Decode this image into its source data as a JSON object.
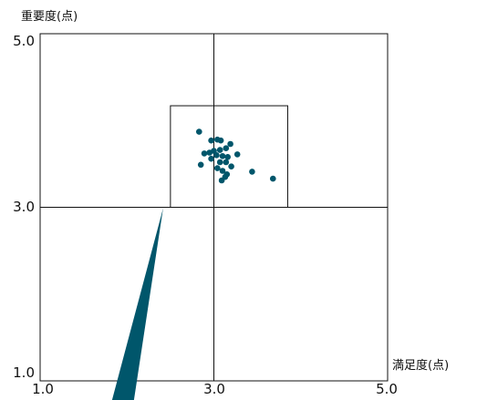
{
  "chart_data": {
    "type": "scatter",
    "title": "",
    "ylabel": "重要度(点)",
    "xlabel": "満足度(点)",
    "xlim": [
      1.0,
      5.0
    ],
    "ylim": [
      1.0,
      5.0
    ],
    "x_ticks": [
      "1.0",
      "3.0",
      "5.0"
    ],
    "y_ticks": [
      "1.0",
      "3.0",
      "5.0"
    ],
    "reference_lines": {
      "x": 3.0,
      "y": 3.0
    },
    "zoom_box": {
      "x_range": [
        2.5,
        3.85
      ],
      "y_range": [
        3.0,
        4.17
      ]
    },
    "grid": false,
    "legend": "none",
    "colors": {
      "points": "#00566b",
      "lines": "#111111",
      "pointer": "#00566b"
    },
    "points": [
      {
        "x": 2.83,
        "y": 3.87
      },
      {
        "x": 2.97,
        "y": 3.77
      },
      {
        "x": 3.04,
        "y": 3.78
      },
      {
        "x": 3.08,
        "y": 3.77
      },
      {
        "x": 3.19,
        "y": 3.73
      },
      {
        "x": 3.14,
        "y": 3.68
      },
      {
        "x": 3.07,
        "y": 3.66
      },
      {
        "x": 3.0,
        "y": 3.65
      },
      {
        "x": 2.95,
        "y": 3.63
      },
      {
        "x": 2.89,
        "y": 3.62
      },
      {
        "x": 3.03,
        "y": 3.6
      },
      {
        "x": 3.1,
        "y": 3.59
      },
      {
        "x": 3.16,
        "y": 3.58
      },
      {
        "x": 3.27,
        "y": 3.61
      },
      {
        "x": 2.97,
        "y": 3.56
      },
      {
        "x": 3.07,
        "y": 3.52
      },
      {
        "x": 3.14,
        "y": 3.52
      },
      {
        "x": 2.85,
        "y": 3.49
      },
      {
        "x": 3.04,
        "y": 3.45
      },
      {
        "x": 3.2,
        "y": 3.47
      },
      {
        "x": 3.1,
        "y": 3.42
      },
      {
        "x": 3.15,
        "y": 3.38
      },
      {
        "x": 3.13,
        "y": 3.35
      },
      {
        "x": 3.09,
        "y": 3.31
      },
      {
        "x": 3.44,
        "y": 3.41
      },
      {
        "x": 3.68,
        "y": 3.33
      }
    ]
  }
}
